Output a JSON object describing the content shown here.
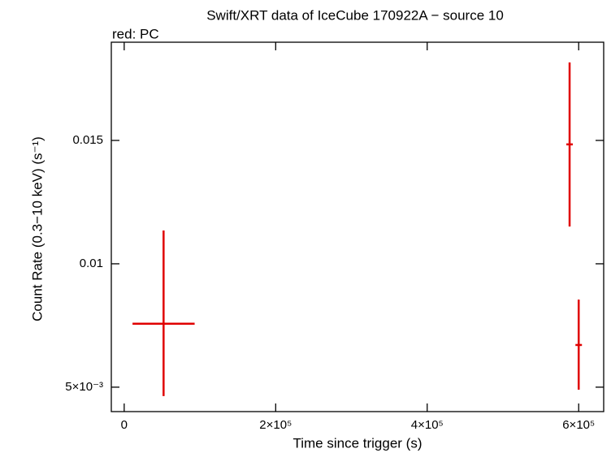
{
  "chart_data": {
    "type": "errorbar",
    "title": "Swift/XRT data of IceCube 170922A − source 10",
    "x_label": "Time since trigger (s)",
    "y_label": "Count Rate (0.3−10 keV) (s⁻¹)",
    "series": [
      {
        "name": "red: PC",
        "color": "#e00000",
        "x": [
          52000,
          588000,
          600000
        ],
        "xerr": [
          41000,
          4300,
          4300
        ],
        "values": [
          0.00757,
          0.01484,
          0.00671
        ],
        "yerr_minus": [
          0.00293,
          0.00333,
          0.00181
        ],
        "yerr_plus": [
          0.00378,
          0.00332,
          0.00184
        ]
      }
    ],
    "xlim": [
      -17000,
      633000
    ],
    "xticks": [
      0,
      {
        "value": 200000,
        "label": "2×10⁵"
      },
      {
        "value": 400000,
        "label": "4×10⁵"
      },
      {
        "value": 600000,
        "label": "6×10⁵"
      }
    ],
    "ylim": [
      0.00401,
      0.01898
    ],
    "yticks": [
      {
        "value": 0.005,
        "label": "5×10⁻³"
      },
      0.01,
      0.015
    ]
  }
}
